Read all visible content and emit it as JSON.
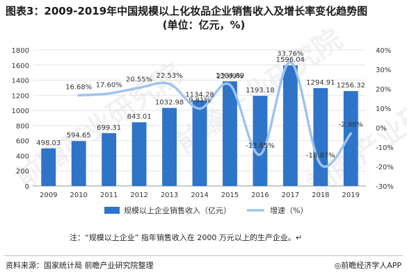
{
  "title_line1": "图表3：2009-2019年中国规模以上化妆品企业销售收入及增长率变化趋势图",
  "title_line2": "(单位：亿元，%)",
  "note": "注：“规模以上企业” 指年销售收入在 2000 万元以上的生产企业。↵",
  "source": "资料来源：国家统计局 前瞻产业研究院整理",
  "brand": "◎前瞻经济学人APP",
  "watermark": "前瞻产业研究院",
  "colors": {
    "bar": "#2e74c9",
    "line": "#9ec3ee",
    "grid": "#e4e4e4"
  },
  "chart_data": {
    "type": "bar",
    "categories": [
      "2009",
      "2010",
      "2011",
      "2012",
      "2013",
      "2014",
      "2015",
      "2016",
      "2017",
      "2018",
      "2019"
    ],
    "series": [
      {
        "name": "规模以上企业销售收入（亿元）",
        "type": "bar",
        "axis": "left",
        "values": [
          498.03,
          594.65,
          699.31,
          843.01,
          1032.98,
          1134.28,
          1384.89,
          1193.18,
          1596.04,
          1294.91,
          1256.32
        ]
      },
      {
        "name": "增速（%）",
        "type": "line",
        "axis": "right",
        "values": [
          null,
          16.68,
          17.6,
          20.55,
          22.53,
          9.81,
          22.09,
          -13.85,
          33.76,
          -18.87,
          -2.98
        ],
        "labels": [
          "",
          "16.68%",
          "17.60%",
          "20.55%",
          "22.53%",
          "9.81%",
          "22.09%",
          "-13.85%",
          "33.76%",
          "-18.87%",
          "-2.98%"
        ]
      }
    ],
    "ylim_left": [
      0,
      1800
    ],
    "yticks_left": [
      "0",
      "200",
      "400",
      "600",
      "800",
      "1000",
      "1200",
      "1400",
      "1600",
      "1800"
    ],
    "ylim_right": [
      -30,
      40
    ],
    "yticks_right": [
      "-30%",
      "-20%",
      "-10%",
      "0%",
      "10%",
      "20%",
      "30%",
      "40%"
    ],
    "legend_position": "bottom",
    "grid": true
  }
}
